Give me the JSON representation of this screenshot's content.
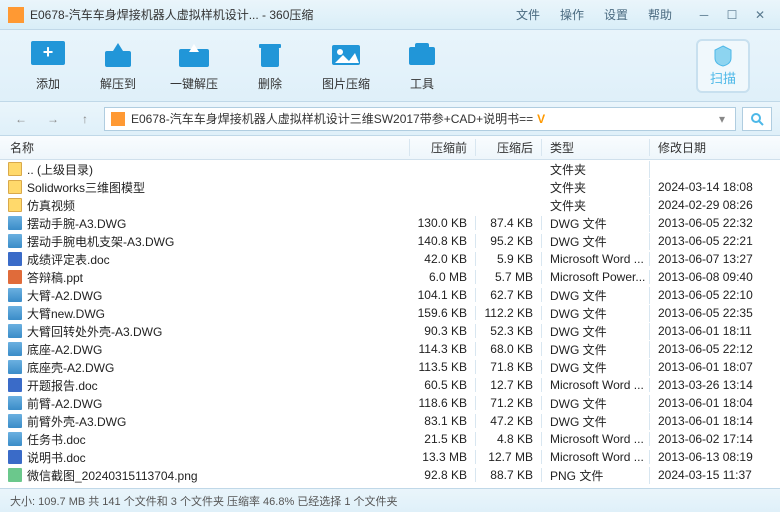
{
  "window": {
    "title": "E0678-汽车车身焊接机器人虚拟样机设计... - 360压缩",
    "menu": [
      "文件",
      "操作",
      "设置",
      "帮助"
    ]
  },
  "toolbar": {
    "items": [
      {
        "label": "添加",
        "icon": "add"
      },
      {
        "label": "解压到",
        "icon": "extract"
      },
      {
        "label": "一键解压",
        "icon": "oneclick"
      },
      {
        "label": "删除",
        "icon": "delete"
      },
      {
        "label": "图片压缩",
        "icon": "image"
      },
      {
        "label": "工具",
        "icon": "tools"
      }
    ],
    "scan": "扫描"
  },
  "address": {
    "path": "E0678-汽车车身焊接机器人虚拟样机设计三维SW2017带参+CAD+说明书==",
    "v": "V"
  },
  "columns": {
    "name": "名称",
    "before": "压缩前",
    "after": "压缩后",
    "type": "类型",
    "date": "修改日期"
  },
  "files": [
    {
      "name": ".. (上级目录)",
      "before": "",
      "after": "",
      "type": "文件夹",
      "date": "",
      "icon": "folder"
    },
    {
      "name": "Solidworks三维图模型",
      "before": "",
      "after": "",
      "type": "文件夹",
      "date": "2024-03-14 18:08",
      "icon": "folder"
    },
    {
      "name": "仿真视频",
      "before": "",
      "after": "",
      "type": "文件夹",
      "date": "2024-02-29 08:26",
      "icon": "folder"
    },
    {
      "name": "摆动手腕-A3.DWG",
      "before": "130.0 KB",
      "after": "87.4 KB",
      "type": "DWG 文件",
      "date": "2013-06-05 22:32",
      "icon": "dwg"
    },
    {
      "name": "摆动手腕电机支架-A3.DWG",
      "before": "140.8 KB",
      "after": "95.2 KB",
      "type": "DWG 文件",
      "date": "2013-06-05 22:21",
      "icon": "dwg"
    },
    {
      "name": "成绩评定表.doc",
      "before": "42.0 KB",
      "after": "5.9 KB",
      "type": "Microsoft Word ...",
      "date": "2013-06-07 13:27",
      "icon": "doc"
    },
    {
      "name": "答辩稿.ppt",
      "before": "6.0 MB",
      "after": "5.7 MB",
      "type": "Microsoft Power...",
      "date": "2013-06-08 09:40",
      "icon": "ppt"
    },
    {
      "name": "大臂-A2.DWG",
      "before": "104.1 KB",
      "after": "62.7 KB",
      "type": "DWG 文件",
      "date": "2013-06-05 22:10",
      "icon": "dwg"
    },
    {
      "name": "大臂new.DWG",
      "before": "159.6 KB",
      "after": "112.2 KB",
      "type": "DWG 文件",
      "date": "2013-06-05 22:35",
      "icon": "dwg"
    },
    {
      "name": "大臂回转处外壳-A3.DWG",
      "before": "90.3 KB",
      "after": "52.3 KB",
      "type": "DWG 文件",
      "date": "2013-06-01 18:11",
      "icon": "dwg"
    },
    {
      "name": "底座-A2.DWG",
      "before": "114.3 KB",
      "after": "68.0 KB",
      "type": "DWG 文件",
      "date": "2013-06-05 22:12",
      "icon": "dwg"
    },
    {
      "name": "底座壳-A2.DWG",
      "before": "113.5 KB",
      "after": "71.8 KB",
      "type": "DWG 文件",
      "date": "2013-06-01 18:07",
      "icon": "dwg"
    },
    {
      "name": "开题报告.doc",
      "before": "60.5 KB",
      "after": "12.7 KB",
      "type": "Microsoft Word ...",
      "date": "2013-03-26 13:14",
      "icon": "doc"
    },
    {
      "name": "前臂-A2.DWG",
      "before": "118.6 KB",
      "after": "71.2 KB",
      "type": "DWG 文件",
      "date": "2013-06-01 18:04",
      "icon": "dwg"
    },
    {
      "name": "前臂外壳-A3.DWG",
      "before": "83.1 KB",
      "after": "47.2 KB",
      "type": "DWG 文件",
      "date": "2013-06-01 18:14",
      "icon": "dwg"
    },
    {
      "name": "任务书.doc",
      "before": "21.5 KB",
      "after": "4.8 KB",
      "type": "Microsoft Word ...",
      "date": "2013-06-02 17:14",
      "icon": "dwg"
    },
    {
      "name": "说明书.doc",
      "before": "13.3 MB",
      "after": "12.7 MB",
      "type": "Microsoft Word ...",
      "date": "2013-06-13 08:19",
      "icon": "doc"
    },
    {
      "name": "微信截图_20240315113704.png",
      "before": "92.8 KB",
      "after": "88.7 KB",
      "type": "PNG 文件",
      "date": "2024-03-15 11:37",
      "icon": "png"
    }
  ],
  "statusbar": "大小: 109.7 MB 共 141 个文件和 3 个文件夹 压缩率 46.8% 已经选择 1 个文件夹",
  "colors": {
    "accent": "#4db8e8",
    "bg_gradient_top": "#eaf5fb",
    "bg_gradient_bottom": "#dff0f9"
  }
}
